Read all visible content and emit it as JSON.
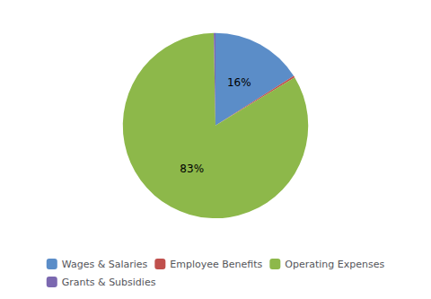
{
  "chart_data": {
    "type": "pie",
    "categories": [
      "Wages & Salaries",
      "Employee Benefits",
      "Operating Expenses",
      "Grants & Subsidies"
    ],
    "values": [
      16,
      0.3,
      83.4,
      0.3
    ],
    "value_labels": [
      "16%",
      null,
      "83%",
      null
    ],
    "colors": [
      "#5b8dc8",
      "#c0504d",
      "#8db84a",
      "#7b68b0"
    ],
    "data_labels": true,
    "legend": "bottom"
  }
}
